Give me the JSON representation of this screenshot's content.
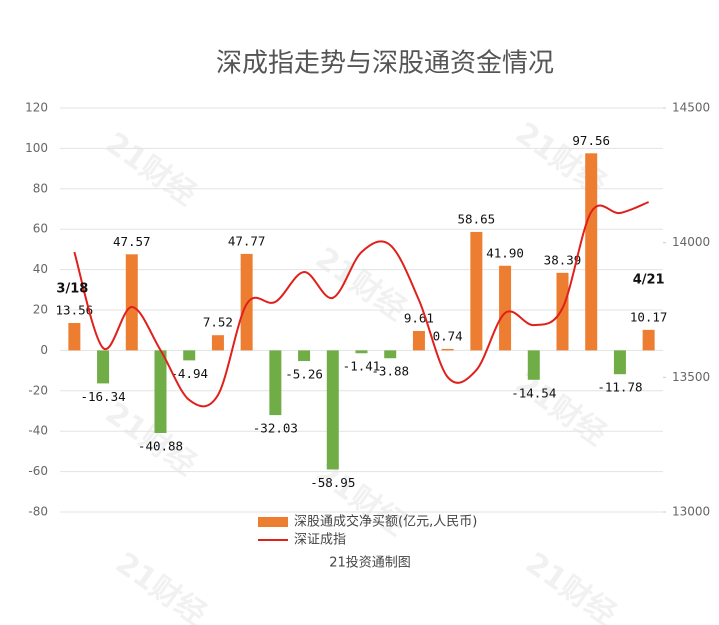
{
  "chart_data": {
    "type": "bar",
    "title": "深成指走势与深股通资金情况",
    "source": "21投资通制图",
    "watermark": "21财经",
    "categories": [
      null,
      null,
      null,
      null,
      null,
      null,
      null,
      null,
      null,
      null,
      null,
      null,
      null,
      null,
      null,
      null,
      null,
      null,
      null,
      null,
      null
    ],
    "annotations": [
      {
        "text": "3/18",
        "index": 0
      },
      {
        "text": "4/21",
        "index": 20
      }
    ],
    "series": [
      {
        "name": "深股通成交净买额(亿元,人民币)",
        "type": "bar",
        "color": "#ed7d31",
        "negative_color": "#70ad47",
        "values": [
          13.56,
          -16.34,
          47.57,
          -40.88,
          -4.94,
          7.52,
          47.77,
          -32.03,
          -5.26,
          -58.95,
          -1.41,
          -3.88,
          9.61,
          0.74,
          58.65,
          41.9,
          -14.54,
          38.39,
          97.56,
          -11.78,
          10.17
        ],
        "value_labels": [
          "13.56",
          "-16.34",
          "47.57",
          "-40.88",
          "-4.94",
          "7.52",
          "47.77",
          "-32.03",
          "-5.26",
          "-58.95",
          "-1.41",
          "-3.88",
          "9.61",
          "0.74",
          "58.65",
          "41.90",
          "-14.54",
          "38.39",
          "97.56",
          "-11.78",
          "10.17"
        ]
      },
      {
        "name": "深证成指",
        "type": "line",
        "axis": "y2",
        "color": "#e0201b",
        "values": [
          13965,
          13609,
          13761,
          13601,
          13416,
          13434,
          13772,
          13780,
          13891,
          13795,
          13965,
          13991,
          13787,
          13501,
          13527,
          13739,
          13694,
          13757,
          14114,
          14110,
          14151
        ]
      }
    ],
    "ylim": [
      -80,
      120
    ],
    "yticks": [
      -80,
      -60,
      -40,
      -20,
      0,
      20,
      40,
      60,
      80,
      100,
      120
    ],
    "y2lim": [
      13000,
      14500
    ],
    "y2ticks": [
      13000,
      13500,
      14000,
      14500
    ],
    "grid": true
  }
}
